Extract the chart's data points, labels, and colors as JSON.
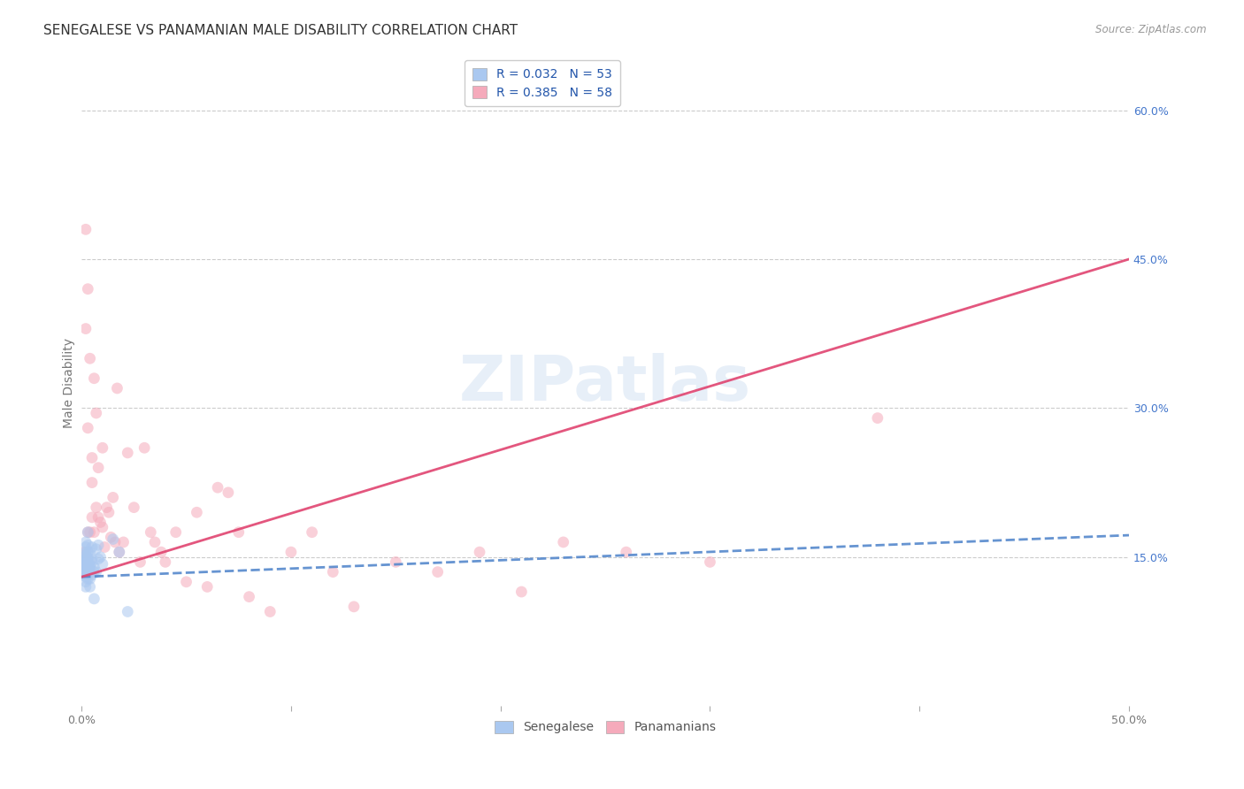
{
  "title": "SENEGALESE VS PANAMANIAN MALE DISABILITY CORRELATION CHART",
  "source": "Source: ZipAtlas.com",
  "ylabel": "Male Disability",
  "xlim": [
    0.0,
    0.5
  ],
  "ylim": [
    0.0,
    0.65
  ],
  "xticks": [
    0.0,
    0.1,
    0.2,
    0.3,
    0.4,
    0.5
  ],
  "xticklabels": [
    "0.0%",
    "",
    "",
    "",
    "",
    "50.0%"
  ],
  "yticks_right": [
    0.15,
    0.3,
    0.45,
    0.6
  ],
  "ytick_labels_right": [
    "15.0%",
    "30.0%",
    "45.0%",
    "60.0%"
  ],
  "legend_r1": "R = 0.032",
  "legend_n1": "N = 53",
  "legend_r2": "R = 0.385",
  "legend_n2": "N = 58",
  "senegalese_color": "#aac8f0",
  "panamanian_color": "#f5aabb",
  "senegalese_line_color": "#5588cc",
  "panamanian_line_color": "#e04470",
  "background_color": "#ffffff",
  "watermark": "ZIPatlas",
  "title_fontsize": 11,
  "axis_label_fontsize": 10,
  "tick_fontsize": 9,
  "legend_fontsize": 10,
  "sen_line_x0": 0.0,
  "sen_line_y0": 0.13,
  "sen_line_x1": 0.5,
  "sen_line_y1": 0.172,
  "pan_line_x0": 0.0,
  "pan_line_y0": 0.13,
  "pan_line_x1": 0.5,
  "pan_line_y1": 0.45,
  "senegalese_x": [
    0.001,
    0.001,
    0.001,
    0.001,
    0.002,
    0.002,
    0.002,
    0.002,
    0.002,
    0.002,
    0.002,
    0.002,
    0.002,
    0.002,
    0.002,
    0.002,
    0.002,
    0.002,
    0.002,
    0.002,
    0.003,
    0.003,
    0.003,
    0.003,
    0.003,
    0.003,
    0.003,
    0.003,
    0.003,
    0.003,
    0.003,
    0.004,
    0.004,
    0.004,
    0.004,
    0.004,
    0.004,
    0.005,
    0.005,
    0.005,
    0.005,
    0.006,
    0.006,
    0.006,
    0.007,
    0.007,
    0.008,
    0.008,
    0.009,
    0.01,
    0.015,
    0.018,
    0.022
  ],
  "senegalese_y": [
    0.145,
    0.138,
    0.15,
    0.132,
    0.155,
    0.148,
    0.14,
    0.145,
    0.138,
    0.142,
    0.13,
    0.125,
    0.16,
    0.135,
    0.148,
    0.152,
    0.143,
    0.137,
    0.165,
    0.12,
    0.128,
    0.162,
    0.145,
    0.138,
    0.15,
    0.142,
    0.148,
    0.132,
    0.155,
    0.143,
    0.175,
    0.12,
    0.14,
    0.135,
    0.155,
    0.142,
    0.128,
    0.145,
    0.16,
    0.132,
    0.148,
    0.108,
    0.14,
    0.135,
    0.158,
    0.135,
    0.162,
    0.148,
    0.15,
    0.143,
    0.168,
    0.155,
    0.095
  ],
  "panamanian_x": [
    0.001,
    0.002,
    0.002,
    0.003,
    0.003,
    0.003,
    0.004,
    0.004,
    0.005,
    0.005,
    0.005,
    0.006,
    0.006,
    0.007,
    0.007,
    0.008,
    0.008,
    0.009,
    0.01,
    0.01,
    0.011,
    0.012,
    0.013,
    0.014,
    0.015,
    0.016,
    0.017,
    0.018,
    0.02,
    0.022,
    0.025,
    0.028,
    0.03,
    0.033,
    0.035,
    0.038,
    0.04,
    0.045,
    0.05,
    0.055,
    0.06,
    0.065,
    0.07,
    0.075,
    0.08,
    0.09,
    0.1,
    0.11,
    0.12,
    0.13,
    0.15,
    0.17,
    0.19,
    0.21,
    0.23,
    0.26,
    0.3,
    0.38
  ],
  "panamanian_y": [
    0.155,
    0.48,
    0.38,
    0.28,
    0.42,
    0.175,
    0.175,
    0.35,
    0.25,
    0.19,
    0.225,
    0.175,
    0.33,
    0.2,
    0.295,
    0.19,
    0.24,
    0.185,
    0.26,
    0.18,
    0.16,
    0.2,
    0.195,
    0.17,
    0.21,
    0.165,
    0.32,
    0.155,
    0.165,
    0.255,
    0.2,
    0.145,
    0.26,
    0.175,
    0.165,
    0.155,
    0.145,
    0.175,
    0.125,
    0.195,
    0.12,
    0.22,
    0.215,
    0.175,
    0.11,
    0.095,
    0.155,
    0.175,
    0.135,
    0.1,
    0.145,
    0.135,
    0.155,
    0.115,
    0.165,
    0.155,
    0.145,
    0.29
  ],
  "dot_size": 85,
  "dot_alpha": 0.55
}
